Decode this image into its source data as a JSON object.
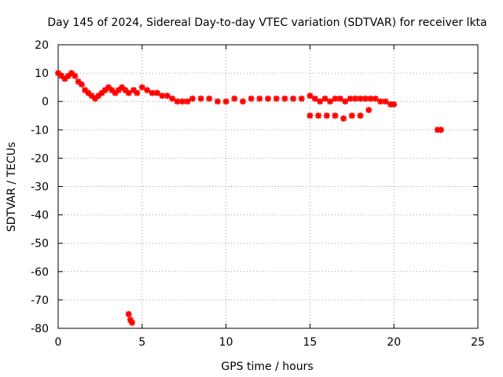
{
  "chart_data": {
    "type": "scatter",
    "title": "Day 145 of 2024, Sidereal Day-to-day VTEC variation (SDTVAR) for receiver lkta",
    "xlabel": "GPS time / hours",
    "ylabel": "SDTVAR / TECUs",
    "xlim": [
      0,
      25
    ],
    "ylim": [
      -80,
      20
    ],
    "xticks": [
      0,
      5,
      10,
      15,
      20,
      25
    ],
    "yticks": [
      -80,
      -70,
      -60,
      -50,
      -40,
      -30,
      -20,
      -10,
      0,
      10,
      20
    ],
    "grid": true,
    "marker": "star",
    "series": [
      {
        "name": "SDTVAR",
        "color": "#ff0000",
        "x": [
          0.0,
          0.2,
          0.4,
          0.6,
          0.8,
          1.0,
          1.2,
          1.4,
          1.6,
          1.8,
          2.0,
          2.2,
          2.4,
          2.6,
          2.8,
          3.0,
          3.2,
          3.4,
          3.6,
          3.8,
          4.0,
          4.2,
          4.5,
          4.7,
          5.0,
          5.3,
          5.6,
          5.9,
          6.2,
          6.5,
          6.8,
          7.1,
          7.4,
          7.7,
          8.0,
          8.5,
          9.0,
          9.5,
          10.0,
          10.5,
          11.0,
          11.5,
          12.0,
          12.5,
          13.0,
          13.5,
          14.0,
          14.5,
          15.0,
          15.3,
          15.6,
          15.9,
          16.2,
          16.5,
          16.8,
          17.1,
          17.4,
          17.7,
          18.0,
          18.3,
          18.6,
          18.9,
          19.2,
          19.5,
          19.8,
          20.0,
          15.0,
          15.5,
          16.0,
          16.5,
          17.0,
          17.5,
          18.0,
          18.5,
          22.6,
          22.8,
          4.2,
          4.3,
          4.4
        ],
        "y": [
          10,
          9,
          8,
          9,
          10,
          9,
          7,
          6,
          4,
          3,
          2,
          1,
          2,
          3,
          4,
          5,
          4,
          3,
          4,
          5,
          4,
          3,
          4,
          3,
          5,
          4,
          3,
          3,
          2,
          2,
          1,
          0,
          0,
          0,
          1,
          1,
          1,
          0,
          0,
          1,
          0,
          1,
          1,
          1,
          1,
          1,
          1,
          1,
          2,
          1,
          0,
          1,
          0,
          1,
          1,
          0,
          1,
          1,
          1,
          1,
          1,
          1,
          0,
          0,
          -1,
          -1,
          -5,
          -5,
          -5,
          -5,
          -6,
          -5,
          -5,
          -3,
          -10,
          -10,
          -75,
          -77,
          -78
        ]
      }
    ]
  }
}
